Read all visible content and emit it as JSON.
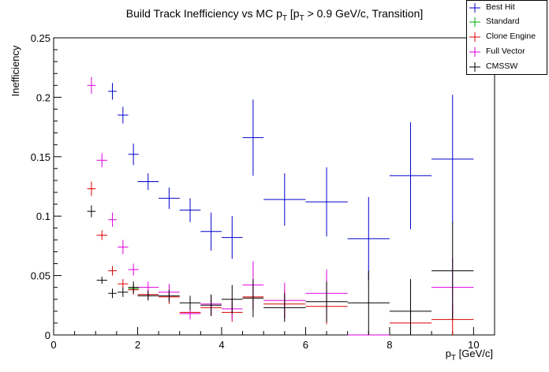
{
  "chart_data": {
    "type": "scatter",
    "title": "Build Track Inefficiency vs MC p",
    "title_sub1": "T",
    "title_mid": " [p",
    "title_sub2": "T",
    "title_tail": " > 0.9 GeV/c, Transition]",
    "xlabel": "p",
    "xlabel_sub": "T",
    "xlabel_tail": " [GeV/c]",
    "ylabel": "Inefficiency",
    "xlim": [
      0,
      10.5
    ],
    "ylim": [
      0,
      0.25
    ],
    "xticks": [
      0,
      2,
      4,
      6,
      8,
      10
    ],
    "xtick_labels": [
      "0",
      "2",
      "4",
      "6",
      "8",
      "10"
    ],
    "yticks": [
      0,
      0.05,
      0.1,
      0.15,
      0.2,
      0.25
    ],
    "ytick_labels": [
      "0",
      "0.05",
      "0.1",
      "0.15",
      "0.2",
      "0.25"
    ],
    "legend_position": "top-right",
    "series": [
      {
        "name": "Best Hit",
        "color": "#0000cc",
        "points": [
          {
            "x": 1.4,
            "y": 0.205,
            "xerr": 0.1,
            "yerr": 0.007
          },
          {
            "x": 1.65,
            "y": 0.185,
            "xerr": 0.125,
            "yerr": 0.007
          },
          {
            "x": 1.9,
            "y": 0.152,
            "xerr": 0.125,
            "yerr": 0.009
          },
          {
            "x": 2.25,
            "y": 0.129,
            "xerr": 0.25,
            "yerr": 0.007
          },
          {
            "x": 2.75,
            "y": 0.115,
            "xerr": 0.25,
            "yerr": 0.009
          },
          {
            "x": 3.25,
            "y": 0.105,
            "xerr": 0.25,
            "yerr": 0.01
          },
          {
            "x": 3.75,
            "y": 0.087,
            "xerr": 0.25,
            "yerr": 0.016
          },
          {
            "x": 4.25,
            "y": 0.082,
            "xerr": 0.25,
            "yerr": 0.018
          },
          {
            "x": 4.75,
            "y": 0.166,
            "xerr": 0.25,
            "yerr": 0.032
          },
          {
            "x": 5.5,
            "y": 0.114,
            "xerr": 0.5,
            "yerr": 0.022
          },
          {
            "x": 6.5,
            "y": 0.112,
            "xerr": 0.5,
            "yerr": 0.029
          },
          {
            "x": 7.5,
            "y": 0.081,
            "xerr": 0.5,
            "yerr": 0.035
          },
          {
            "x": 8.5,
            "y": 0.134,
            "xerr": 0.5,
            "yerr": 0.045
          },
          {
            "x": 9.5,
            "y": 0.148,
            "xerr": 0.5,
            "yerr": 0.054
          }
        ]
      },
      {
        "name": "Standard",
        "color": "#00aa00",
        "points": [
          {
            "x": 1.9,
            "y": 0.039,
            "xerr": 0.125,
            "yerr": 0.004
          }
        ]
      },
      {
        "name": "Clone Engine",
        "color": "#dd0000",
        "points": [
          {
            "x": 0.9,
            "y": 0.123,
            "xerr": 0.1,
            "yerr": 0.006
          },
          {
            "x": 1.15,
            "y": 0.084,
            "xerr": 0.125,
            "yerr": 0.004
          },
          {
            "x": 1.4,
            "y": 0.054,
            "xerr": 0.1,
            "yerr": 0.004
          },
          {
            "x": 1.65,
            "y": 0.043,
            "xerr": 0.125,
            "yerr": 0.004
          },
          {
            "x": 1.9,
            "y": 0.038,
            "xerr": 0.125,
            "yerr": 0.004
          },
          {
            "x": 2.25,
            "y": 0.034,
            "xerr": 0.25,
            "yerr": 0.004
          },
          {
            "x": 2.75,
            "y": 0.032,
            "xerr": 0.25,
            "yerr": 0.006
          },
          {
            "x": 3.25,
            "y": 0.019,
            "xerr": 0.25,
            "yerr": 0.004
          },
          {
            "x": 3.75,
            "y": 0.023,
            "xerr": 0.25,
            "yerr": 0.007
          },
          {
            "x": 4.25,
            "y": 0.019,
            "xerr": 0.25,
            "yerr": 0.008
          },
          {
            "x": 4.75,
            "y": 0.032,
            "xerr": 0.25,
            "yerr": 0.011
          },
          {
            "x": 5.5,
            "y": 0.026,
            "xerr": 0.5,
            "yerr": 0.012
          },
          {
            "x": 6.5,
            "y": 0.024,
            "xerr": 0.5,
            "yerr": 0.015
          },
          {
            "x": 8.5,
            "y": 0.01,
            "xerr": 0.5,
            "yerr": 0.01
          },
          {
            "x": 9.5,
            "y": 0.013,
            "xerr": 0.5,
            "yerr": 0.013
          }
        ]
      },
      {
        "name": "Full Vector",
        "color": "#dd00dd",
        "points": [
          {
            "x": 0.9,
            "y": 0.21,
            "xerr": 0.1,
            "yerr": 0.007
          },
          {
            "x": 1.15,
            "y": 0.147,
            "xerr": 0.125,
            "yerr": 0.006
          },
          {
            "x": 1.4,
            "y": 0.097,
            "xerr": 0.1,
            "yerr": 0.006
          },
          {
            "x": 1.65,
            "y": 0.074,
            "xerr": 0.125,
            "yerr": 0.006
          },
          {
            "x": 1.9,
            "y": 0.055,
            "xerr": 0.125,
            "yerr": 0.005
          },
          {
            "x": 2.25,
            "y": 0.04,
            "xerr": 0.25,
            "yerr": 0.005
          },
          {
            "x": 2.75,
            "y": 0.036,
            "xerr": 0.25,
            "yerr": 0.007
          },
          {
            "x": 3.25,
            "y": 0.018,
            "xerr": 0.25,
            "yerr": 0.005
          },
          {
            "x": 3.75,
            "y": 0.026,
            "xerr": 0.25,
            "yerr": 0.008
          },
          {
            "x": 4.25,
            "y": 0.022,
            "xerr": 0.25,
            "yerr": 0.009
          },
          {
            "x": 4.75,
            "y": 0.042,
            "xerr": 0.25,
            "yerr": 0.02
          },
          {
            "x": 5.5,
            "y": 0.029,
            "xerr": 0.5,
            "yerr": 0.015
          },
          {
            "x": 6.5,
            "y": 0.035,
            "xerr": 0.5,
            "yerr": 0.02
          },
          {
            "x": 7.5,
            "y": 0.0,
            "xerr": 0.5,
            "yerr": 0.0
          },
          {
            "x": 9.5,
            "y": 0.04,
            "xerr": 0.5,
            "yerr": 0.025
          }
        ]
      },
      {
        "name": "CMSSW",
        "color": "#000000",
        "points": [
          {
            "x": 0.9,
            "y": 0.104,
            "xerr": 0.1,
            "yerr": 0.005
          },
          {
            "x": 1.15,
            "y": 0.046,
            "xerr": 0.125,
            "yerr": 0.003
          },
          {
            "x": 1.4,
            "y": 0.035,
            "xerr": 0.1,
            "yerr": 0.004
          },
          {
            "x": 1.65,
            "y": 0.036,
            "xerr": 0.125,
            "yerr": 0.004
          },
          {
            "x": 1.9,
            "y": 0.04,
            "xerr": 0.125,
            "yerr": 0.005
          },
          {
            "x": 2.25,
            "y": 0.033,
            "xerr": 0.25,
            "yerr": 0.004
          },
          {
            "x": 2.75,
            "y": 0.033,
            "xerr": 0.25,
            "yerr": 0.005
          },
          {
            "x": 3.25,
            "y": 0.027,
            "xerr": 0.25,
            "yerr": 0.006
          },
          {
            "x": 3.75,
            "y": 0.025,
            "xerr": 0.25,
            "yerr": 0.009
          },
          {
            "x": 4.25,
            "y": 0.03,
            "xerr": 0.25,
            "yerr": 0.012
          },
          {
            "x": 4.75,
            "y": 0.031,
            "xerr": 0.25,
            "yerr": 0.016
          },
          {
            "x": 5.5,
            "y": 0.023,
            "xerr": 0.5,
            "yerr": 0.012
          },
          {
            "x": 6.5,
            "y": 0.028,
            "xerr": 0.5,
            "yerr": 0.017
          },
          {
            "x": 7.5,
            "y": 0.027,
            "xerr": 0.5,
            "yerr": 0.027
          },
          {
            "x": 8.5,
            "y": 0.02,
            "xerr": 0.5,
            "yerr": 0.027
          },
          {
            "x": 9.5,
            "y": 0.054,
            "xerr": 0.5,
            "yerr": 0.041
          }
        ]
      }
    ]
  }
}
